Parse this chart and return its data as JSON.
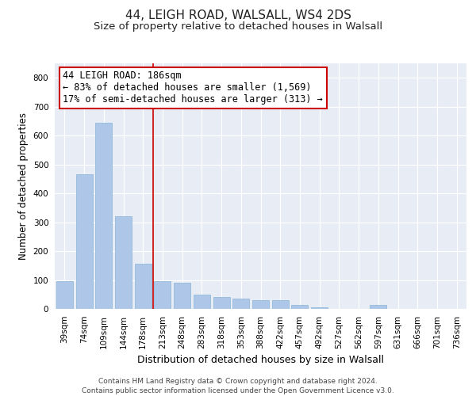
{
  "title1": "44, LEIGH ROAD, WALSALL, WS4 2DS",
  "title2": "Size of property relative to detached houses in Walsall",
  "xlabel": "Distribution of detached houses by size in Walsall",
  "ylabel": "Number of detached properties",
  "categories": [
    "39sqm",
    "74sqm",
    "109sqm",
    "144sqm",
    "178sqm",
    "213sqm",
    "248sqm",
    "283sqm",
    "318sqm",
    "353sqm",
    "388sqm",
    "422sqm",
    "457sqm",
    "492sqm",
    "527sqm",
    "562sqm",
    "597sqm",
    "631sqm",
    "666sqm",
    "701sqm",
    "736sqm"
  ],
  "values": [
    95,
    465,
    645,
    320,
    155,
    95,
    90,
    50,
    40,
    35,
    30,
    30,
    15,
    5,
    0,
    0,
    15,
    0,
    0,
    0,
    0
  ],
  "bar_color": "#aec6e8",
  "bar_edge_color": "#8ab4d8",
  "background_color": "#e8edf5",
  "grid_color": "#ffffff",
  "ylim": [
    0,
    850
  ],
  "yticks": [
    0,
    100,
    200,
    300,
    400,
    500,
    600,
    700,
    800
  ],
  "red_line_index": 4.5,
  "annotation_line1": "44 LEIGH ROAD: 186sqm",
  "annotation_line2": "← 83% of detached houses are smaller (1,569)",
  "annotation_line3": "17% of semi-detached houses are larger (313) →",
  "annotation_box_color": "#ffffff",
  "annotation_border_color": "#cc0000",
  "footer_text": "Contains HM Land Registry data © Crown copyright and database right 2024.\nContains public sector information licensed under the Open Government Licence v3.0.",
  "title1_fontsize": 11,
  "title2_fontsize": 9.5,
  "xlabel_fontsize": 9,
  "ylabel_fontsize": 8.5,
  "tick_fontsize": 7.5,
  "annotation_fontsize": 8.5,
  "footer_fontsize": 6.5
}
